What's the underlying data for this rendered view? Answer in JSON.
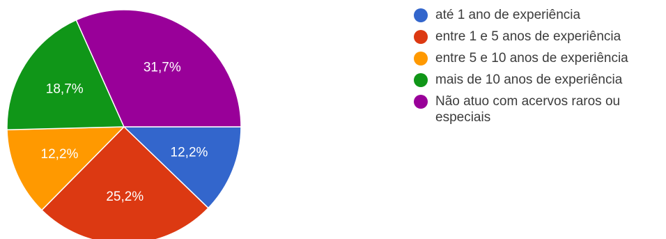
{
  "chart_data": {
    "type": "pie",
    "title": "",
    "categories": [
      "até 1 ano de experiência",
      "entre 1 e 5 anos de experiência",
      "entre 5 e 10 anos de experiência",
      "mais de 10 anos de experiência",
      "Não atuo com acervos raros ou especiais"
    ],
    "values": [
      12.2,
      25.2,
      12.2,
      18.7,
      31.7
    ],
    "value_labels": [
      "12,2%",
      "25,2%",
      "12,2%",
      "18,7%",
      "31,7%"
    ],
    "colors": [
      "#3366cc",
      "#dc3912",
      "#ff9900",
      "#109618",
      "#990099"
    ],
    "legend_position": "right"
  }
}
